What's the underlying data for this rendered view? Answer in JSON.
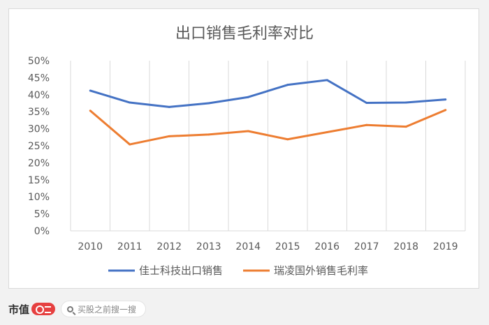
{
  "chart_data": {
    "type": "line",
    "title": "出口销售毛利率对比",
    "categories": [
      "2010",
      "2011",
      "2012",
      "2013",
      "2014",
      "2015",
      "2016",
      "2017",
      "2018",
      "2019"
    ],
    "ylim": [
      0,
      50
    ],
    "y_ticks": [
      "0%",
      "5%",
      "10%",
      "15%",
      "20%",
      "25%",
      "30%",
      "35%",
      "40%",
      "45%",
      "50%"
    ],
    "grid": "vertical",
    "legend": "bottom",
    "series": [
      {
        "name": "佳士科技出口销售",
        "color": "#4472c4",
        "values": [
          41.2,
          37.7,
          36.4,
          37.5,
          39.3,
          42.9,
          44.3,
          37.6,
          37.7,
          38.6
        ]
      },
      {
        "name": "瑞凌国外销售毛利率",
        "color": "#ed7d31",
        "values": [
          35.3,
          25.4,
          27.8,
          28.3,
          29.3,
          26.9,
          29.0,
          31.1,
          30.6,
          35.5
        ]
      }
    ]
  },
  "footer": {
    "brand": "市值",
    "search_placeholder": "买股之前搜一搜"
  }
}
